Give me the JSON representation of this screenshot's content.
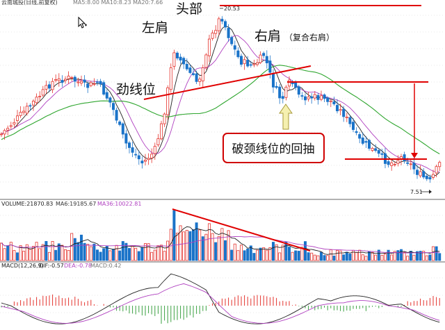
{
  "colors": {
    "up": "#e4332d",
    "down": "#1a73c9",
    "ma_fast": "#222222",
    "ma_mid": "#b040c0",
    "ma_long": "#2fa62f",
    "annot": "#e00000",
    "arrow_fill": "#f5f0b0",
    "grid": "#d0d0d0"
  },
  "header": {
    "main_text": "云南城投(日线,前复权)",
    "main_ma": "MA5:8.00 MA10:8.23 MA20:7.66",
    "vol_text": "VOLUME:21870.83",
    "vol_ma6": "MA6:19185.67",
    "vol_ma36": "MA36:10022.81",
    "macd_text": "MACD(12,26,9)",
    "macd_dif": "DIF:-0.57",
    "macd_dea": "DEA:-0.78",
    "macd_val": "MACD:0.42"
  },
  "annotations": {
    "left_shoulder": "左肩",
    "head": "头部",
    "right_shoulder": "右肩",
    "composite": "（复合右肩）",
    "neckline": "劲线位",
    "pullback": "破颈线位的回抽",
    "high_label": "20.53",
    "low_label": "7.51"
  },
  "chart_data": {
    "type": "candlestick",
    "title": "云南城投(日线,前复权)",
    "price_extremes": {
      "high": 20.53,
      "low": 7.51
    },
    "volume_ma": {
      "ma6": 19185.67,
      "ma36": 10022.81,
      "volume": 21870.83
    },
    "macd": {
      "dif": -0.57,
      "dea": -0.78,
      "macd": 0.42
    }
  }
}
